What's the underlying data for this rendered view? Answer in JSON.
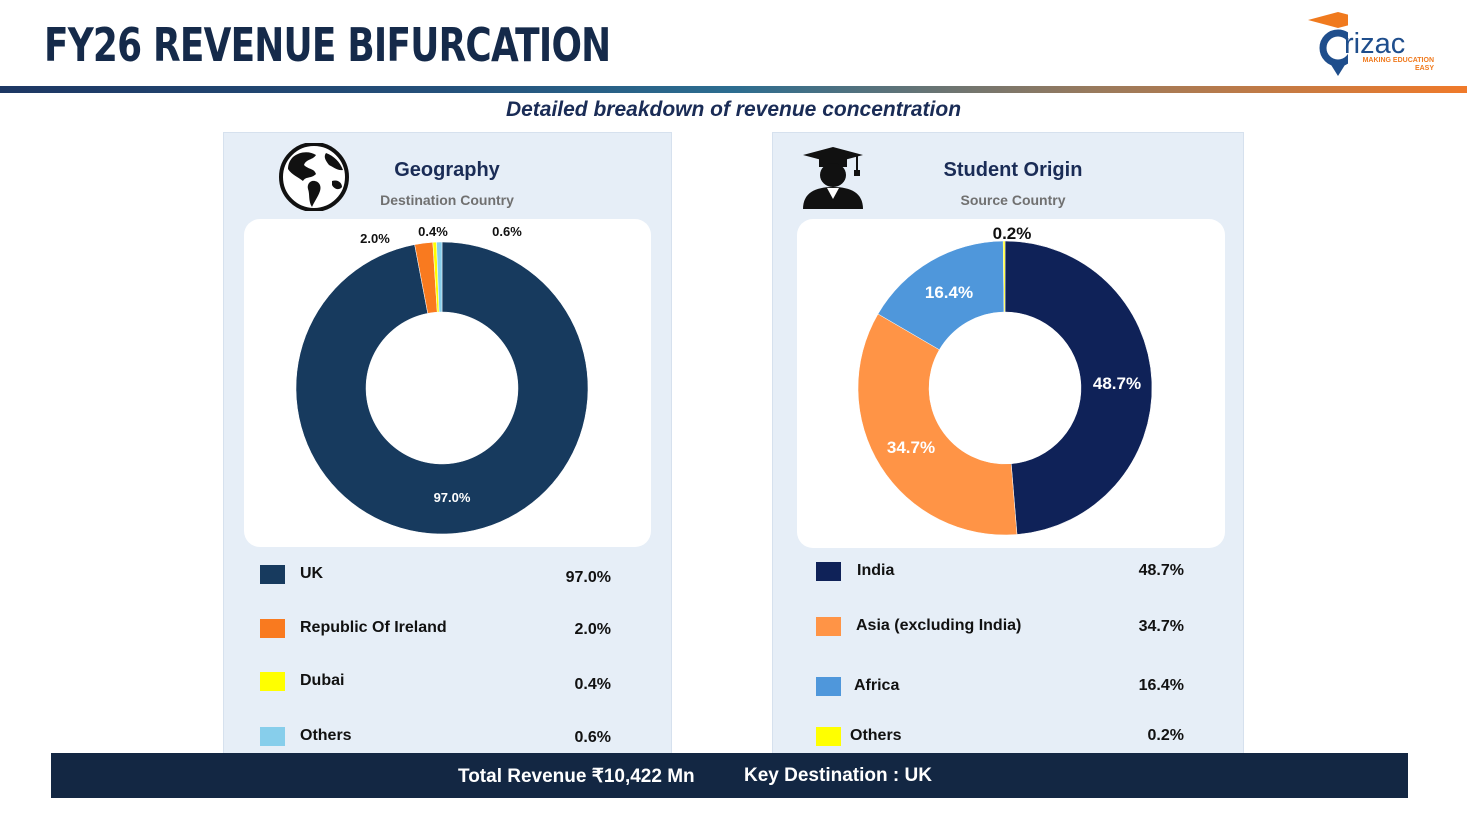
{
  "header": {
    "title": "FY26 REVENUE BIFURCATION",
    "subtitle": "Detailed breakdown of revenue concentration",
    "logo_word": "rizac",
    "logo_tagline": "MAKING EDUCATION EASY"
  },
  "colors": {
    "navy": "#173a5e",
    "orange": "#f97a1f",
    "yellow": "#ffff00",
    "light_blue": "#87ceeb",
    "india_navy": "#0f2258",
    "asia_orange": "#ff9446",
    "africa_blue": "#4f97db",
    "footer_bg": "#132743"
  },
  "geography": {
    "title": "Geography",
    "subtitle": "Destination Country",
    "icon": "globe-icon",
    "legend": [
      {
        "label": "UK",
        "value": "97.0%",
        "color": "#173a5e"
      },
      {
        "label": "Republic Of Ireland",
        "value": "2.0%",
        "color": "#f97a1f"
      },
      {
        "label": "Dubai",
        "value": "0.4%",
        "color": "#ffff00"
      },
      {
        "label": "Others",
        "value": "0.6%",
        "color": "#87ceeb"
      }
    ]
  },
  "student_origin": {
    "title": "Student Origin",
    "subtitle": "Source Country",
    "icon": "graduate-icon",
    "legend": [
      {
        "label": "India",
        "value": "48.7%",
        "color": "#0f2258"
      },
      {
        "label": "Asia (excluding India)",
        "value": "34.7%",
        "color": "#ff9446"
      },
      {
        "label": "Africa",
        "value": "16.4%",
        "color": "#4f97db"
      },
      {
        "label": "Others",
        "value": "0.2%",
        "color": "#ffff00"
      }
    ]
  },
  "chart_data": [
    {
      "type": "pie",
      "donut": true,
      "title": "Geography",
      "categories": [
        "UK",
        "Republic Of Ireland",
        "Dubai",
        "Others"
      ],
      "values": [
        97.0,
        2.0,
        0.4,
        0.6
      ],
      "labels": [
        "97.0%",
        "2.0%",
        "0.4%",
        "0.6%"
      ],
      "colors": [
        "#173a5e",
        "#f97a1f",
        "#ffff00",
        "#87ceeb"
      ],
      "legend": "bottom"
    },
    {
      "type": "pie",
      "donut": true,
      "title": "Student Origin",
      "categories": [
        "India",
        "Asia (excluding India)",
        "Africa",
        "Others"
      ],
      "values": [
        48.7,
        34.7,
        16.4,
        0.2
      ],
      "labels": [
        "48.7%",
        "34.7%",
        "16.4%",
        "0.2%"
      ],
      "colors": [
        "#0f2258",
        "#ff9446",
        "#4f97db",
        "#ffff00"
      ],
      "legend": "bottom"
    }
  ],
  "footer": {
    "total_revenue": "Total Revenue ₹10,422 Mn",
    "key_destination": "Key Destination : UK"
  }
}
